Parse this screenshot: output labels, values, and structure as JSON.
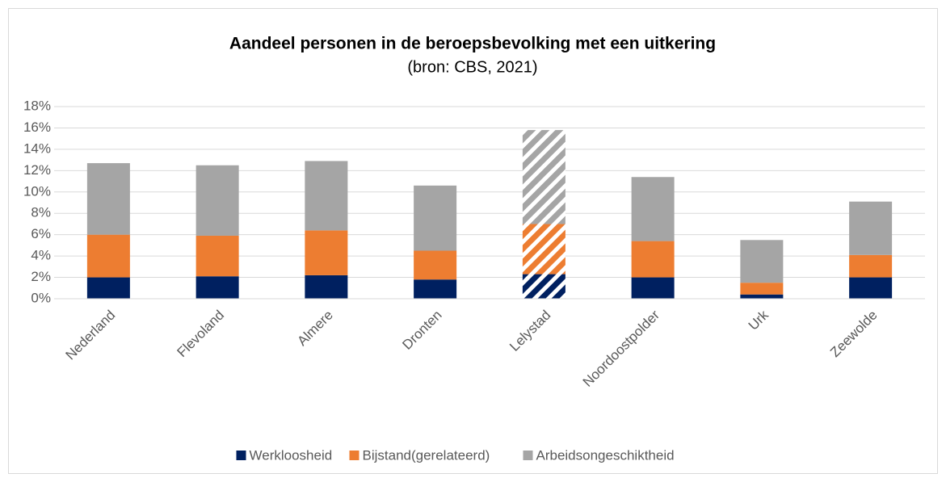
{
  "chart_data": {
    "type": "stacked_bar",
    "title": "Aandeel personen in de beroepsbevolking met een uitkering",
    "subtitle": "(bron: CBS, 2021)",
    "categories": [
      "Nederland",
      "Flevoland",
      "Almere",
      "Dronten",
      "Lelystad",
      "Noordoostpolder",
      "Urk",
      "Zeewolde"
    ],
    "series": [
      {
        "name": "Werkloosheid",
        "color": "#002060",
        "values": [
          2.0,
          2.1,
          2.2,
          1.8,
          2.3,
          2.0,
          0.4,
          2.0
        ]
      },
      {
        "name": "Bijstand(gerelateerd)",
        "color": "#ed7d31",
        "values": [
          4.0,
          3.8,
          4.2,
          2.7,
          4.7,
          3.4,
          1.1,
          2.1
        ]
      },
      {
        "name": "Arbeidsongeschiktheid",
        "color": "#a5a5a5",
        "values": [
          6.7,
          6.6,
          6.5,
          6.1,
          8.8,
          6.0,
          4.0,
          5.0
        ]
      }
    ],
    "hatched": [
      false,
      false,
      false,
      false,
      true,
      false,
      false,
      false
    ],
    "ylim": [
      0,
      18
    ],
    "yticks": [
      {
        "value": 0,
        "label": "0%"
      },
      {
        "value": 2,
        "label": "2%"
      },
      {
        "value": 4,
        "label": "4%"
      },
      {
        "value": 6,
        "label": "6%"
      },
      {
        "value": 8,
        "label": "8%"
      },
      {
        "value": 10,
        "label": "10%"
      },
      {
        "value": 12,
        "label": "12%"
      },
      {
        "value": 14,
        "label": "14%"
      },
      {
        "value": 16,
        "label": "16%"
      },
      {
        "value": 18,
        "label": "18%"
      }
    ],
    "grid": true,
    "legend": "bottom"
  }
}
